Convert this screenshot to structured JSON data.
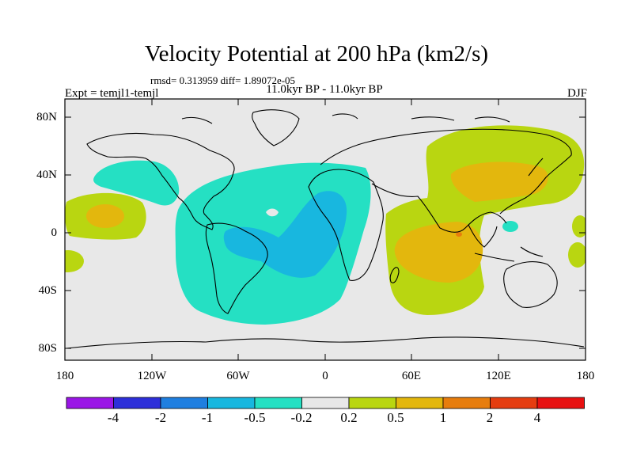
{
  "plot": {
    "title": "Velocity Potential at 200 hPa (km2/s)",
    "stats": "rmsd= 0.313959  diff= 1.89072e-05",
    "experiment": "Expt = temjl1-temjl",
    "period": "11.0kyr BP - 11.0kyr BP",
    "season": "DJF"
  },
  "axes": {
    "lat_ticks": [
      "80N",
      "40N",
      "0",
      "40S",
      "80S"
    ],
    "lon_ticks": [
      "180",
      "120W",
      "60W",
      "0",
      "60E",
      "120E",
      "180"
    ]
  },
  "colorbar": {
    "labels": [
      "-4",
      "-2",
      "-1",
      "-0.5",
      "-0.2",
      "0.2",
      "0.5",
      "1",
      "2",
      "4"
    ],
    "colors": [
      "#9a16e6",
      "#2d2fd9",
      "#1f7fe0",
      "#18b7df",
      "#25e0c3",
      "#e8e8e8",
      "#b9d611",
      "#e3b70d",
      "#e77d0d",
      "#e53d10",
      "#e81010"
    ]
  },
  "palette": {
    "land_bg": "#e8e8e8",
    "cyan": "#25e0c3",
    "blue": "#18b7df",
    "green": "#b9d611",
    "orange": "#e3b70d",
    "darkorange": "#e77d0d"
  }
}
